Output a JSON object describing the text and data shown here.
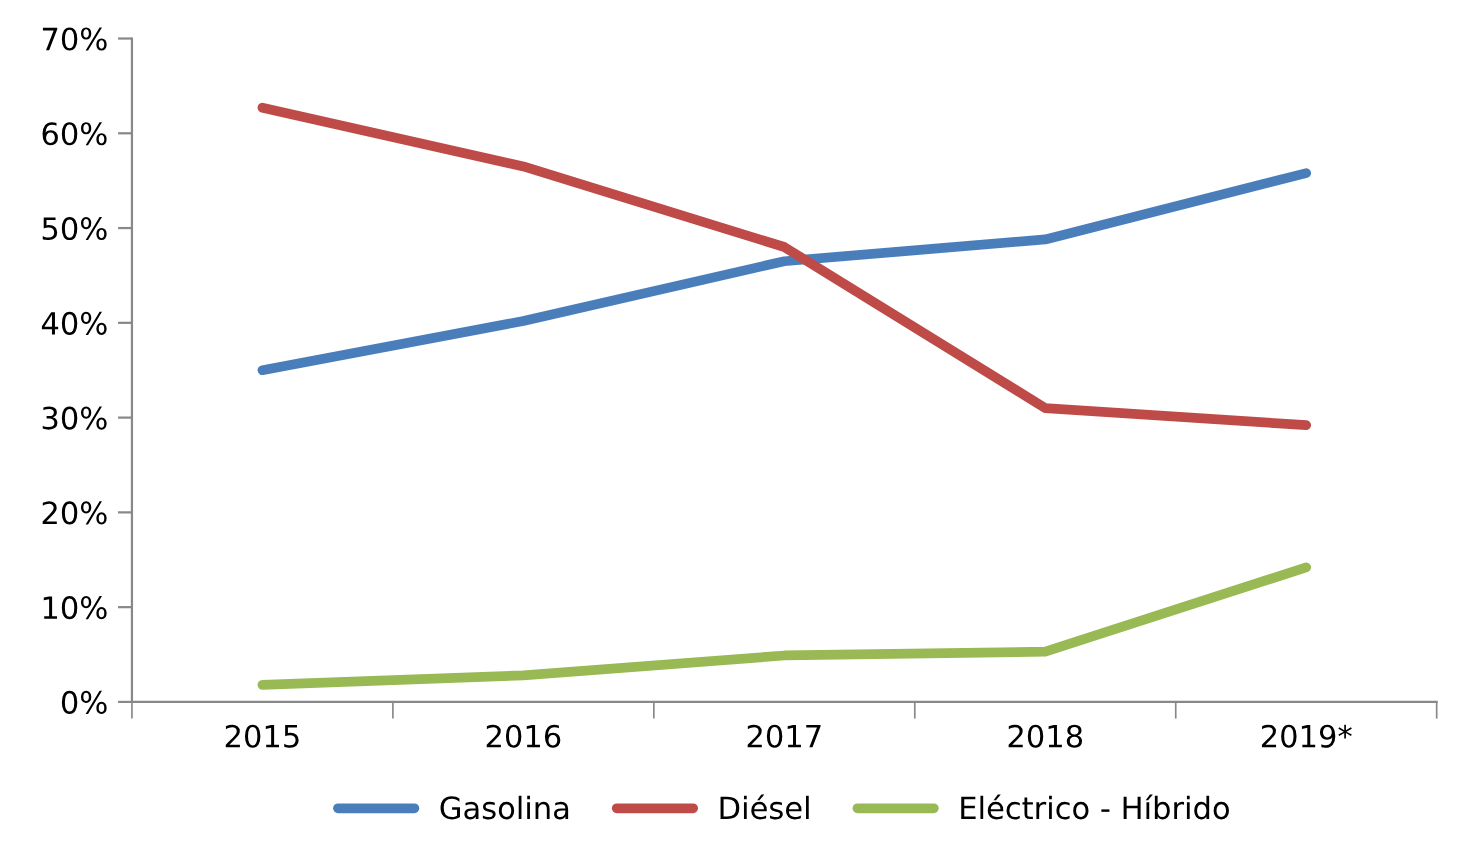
{
  "chart_data": {
    "type": "line",
    "categories": [
      "2015",
      "2016",
      "2017",
      "2018",
      "2019*"
    ],
    "series": [
      {
        "name": "Gasolina",
        "color": "#4a7ebb",
        "values": [
          35.0,
          40.2,
          46.5,
          48.8,
          55.8
        ]
      },
      {
        "name": "Diésel",
        "color": "#be4b48",
        "values": [
          62.7,
          56.5,
          48.0,
          31.0,
          29.2
        ]
      },
      {
        "name": "Eléctrico - Híbrido",
        "color": "#98b954",
        "values": [
          1.8,
          2.8,
          4.9,
          5.3,
          14.2
        ]
      }
    ],
    "ylim": [
      0,
      70
    ],
    "yticks": [
      {
        "value": 0,
        "label": "0%"
      },
      {
        "value": 10,
        "label": "10%"
      },
      {
        "value": 20,
        "label": "20%"
      },
      {
        "value": 30,
        "label": "30%"
      },
      {
        "value": 40,
        "label": "40%"
      },
      {
        "value": 50,
        "label": "50%"
      },
      {
        "value": 60,
        "label": "60%"
      },
      {
        "value": 70,
        "label": "70%"
      }
    ],
    "grid": false,
    "legend": "bottom",
    "marker": "none",
    "line_style": "solid"
  }
}
